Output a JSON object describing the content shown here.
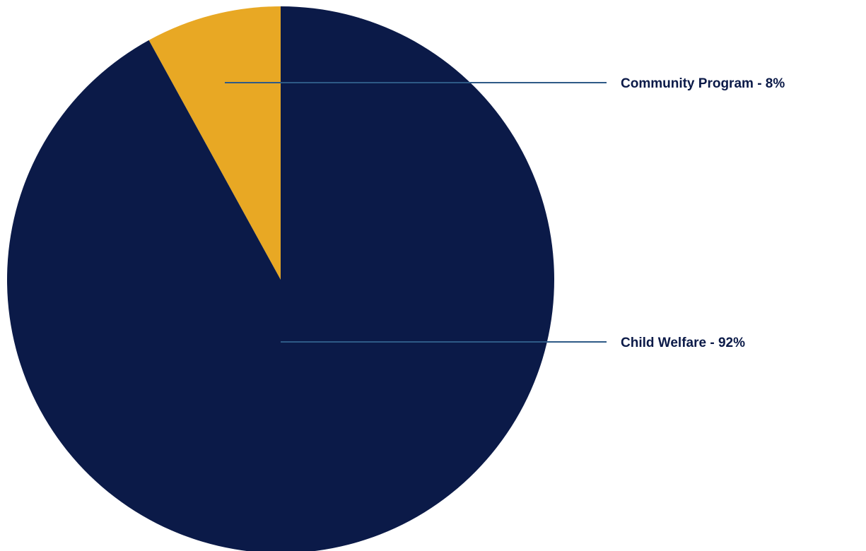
{
  "chart_data": {
    "type": "pie",
    "title": "",
    "slices": [
      {
        "label": "Community Program - 8%",
        "value": 8,
        "color": "#E8A824"
      },
      {
        "label": "Child Welfare - 92%",
        "value": 92,
        "color": "#0B1A48"
      }
    ],
    "start_angle": "12 o'clock",
    "direction": "counter-clockwise",
    "legend": "none",
    "label_color": "#0B1A48",
    "leader_line_color": "#2E5A87"
  }
}
